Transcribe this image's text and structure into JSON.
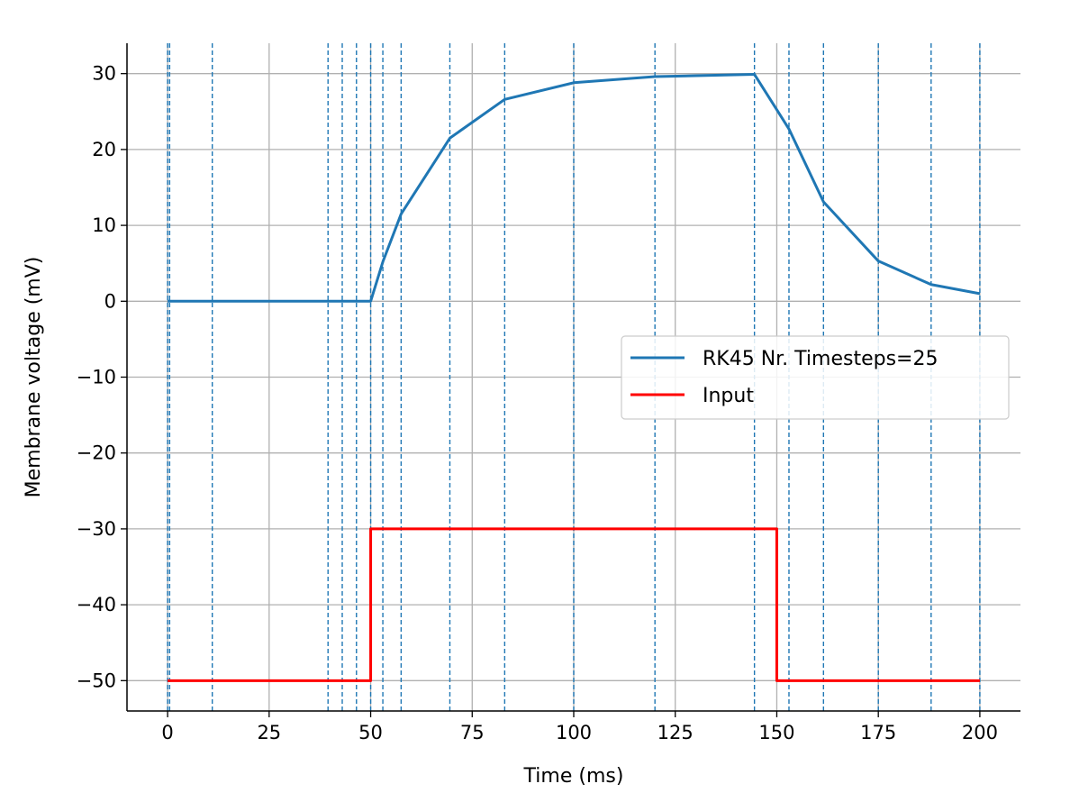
{
  "chart_data": {
    "type": "line",
    "xlabel": "Time (ms)",
    "ylabel": "Membrane voltage (mV)",
    "xlim": [
      -10,
      210
    ],
    "ylim": [
      -54,
      34
    ],
    "xticks": [
      0,
      25,
      50,
      75,
      100,
      125,
      150,
      175,
      200
    ],
    "yticks": [
      30,
      20,
      10,
      0,
      -10,
      -20,
      -30,
      -40,
      -50
    ],
    "grid": true,
    "legend_position": "center-right",
    "series": [
      {
        "name": "RK45 Nr. Timesteps=25",
        "color": "#1f77b4",
        "x": [
          0,
          0.5,
          11,
          39.5,
          43,
          46.5,
          50,
          53,
          57.5,
          69.5,
          83,
          100,
          120,
          144.5,
          153,
          161.5,
          175,
          188,
          200
        ],
        "y": [
          0,
          0,
          0,
          0,
          0,
          0,
          0,
          5.2,
          11.5,
          21.5,
          26.6,
          28.8,
          29.6,
          29.9,
          22.7,
          13.1,
          5.3,
          2.2,
          1.0
        ]
      },
      {
        "name": "Input",
        "color": "#ff0000",
        "step": true,
        "x": [
          0,
          50,
          50,
          150,
          150,
          200
        ],
        "y": [
          -50,
          -50,
          -30,
          -30,
          -50,
          -50
        ]
      }
    ],
    "timestep_markers": {
      "color": "#1f77b4",
      "style": "dashed",
      "x": [
        0,
        0.5,
        11,
        39.5,
        43,
        46.5,
        50,
        53,
        57.5,
        69.5,
        83,
        100,
        120,
        144.5,
        153,
        161.5,
        175,
        188,
        200
      ]
    }
  }
}
